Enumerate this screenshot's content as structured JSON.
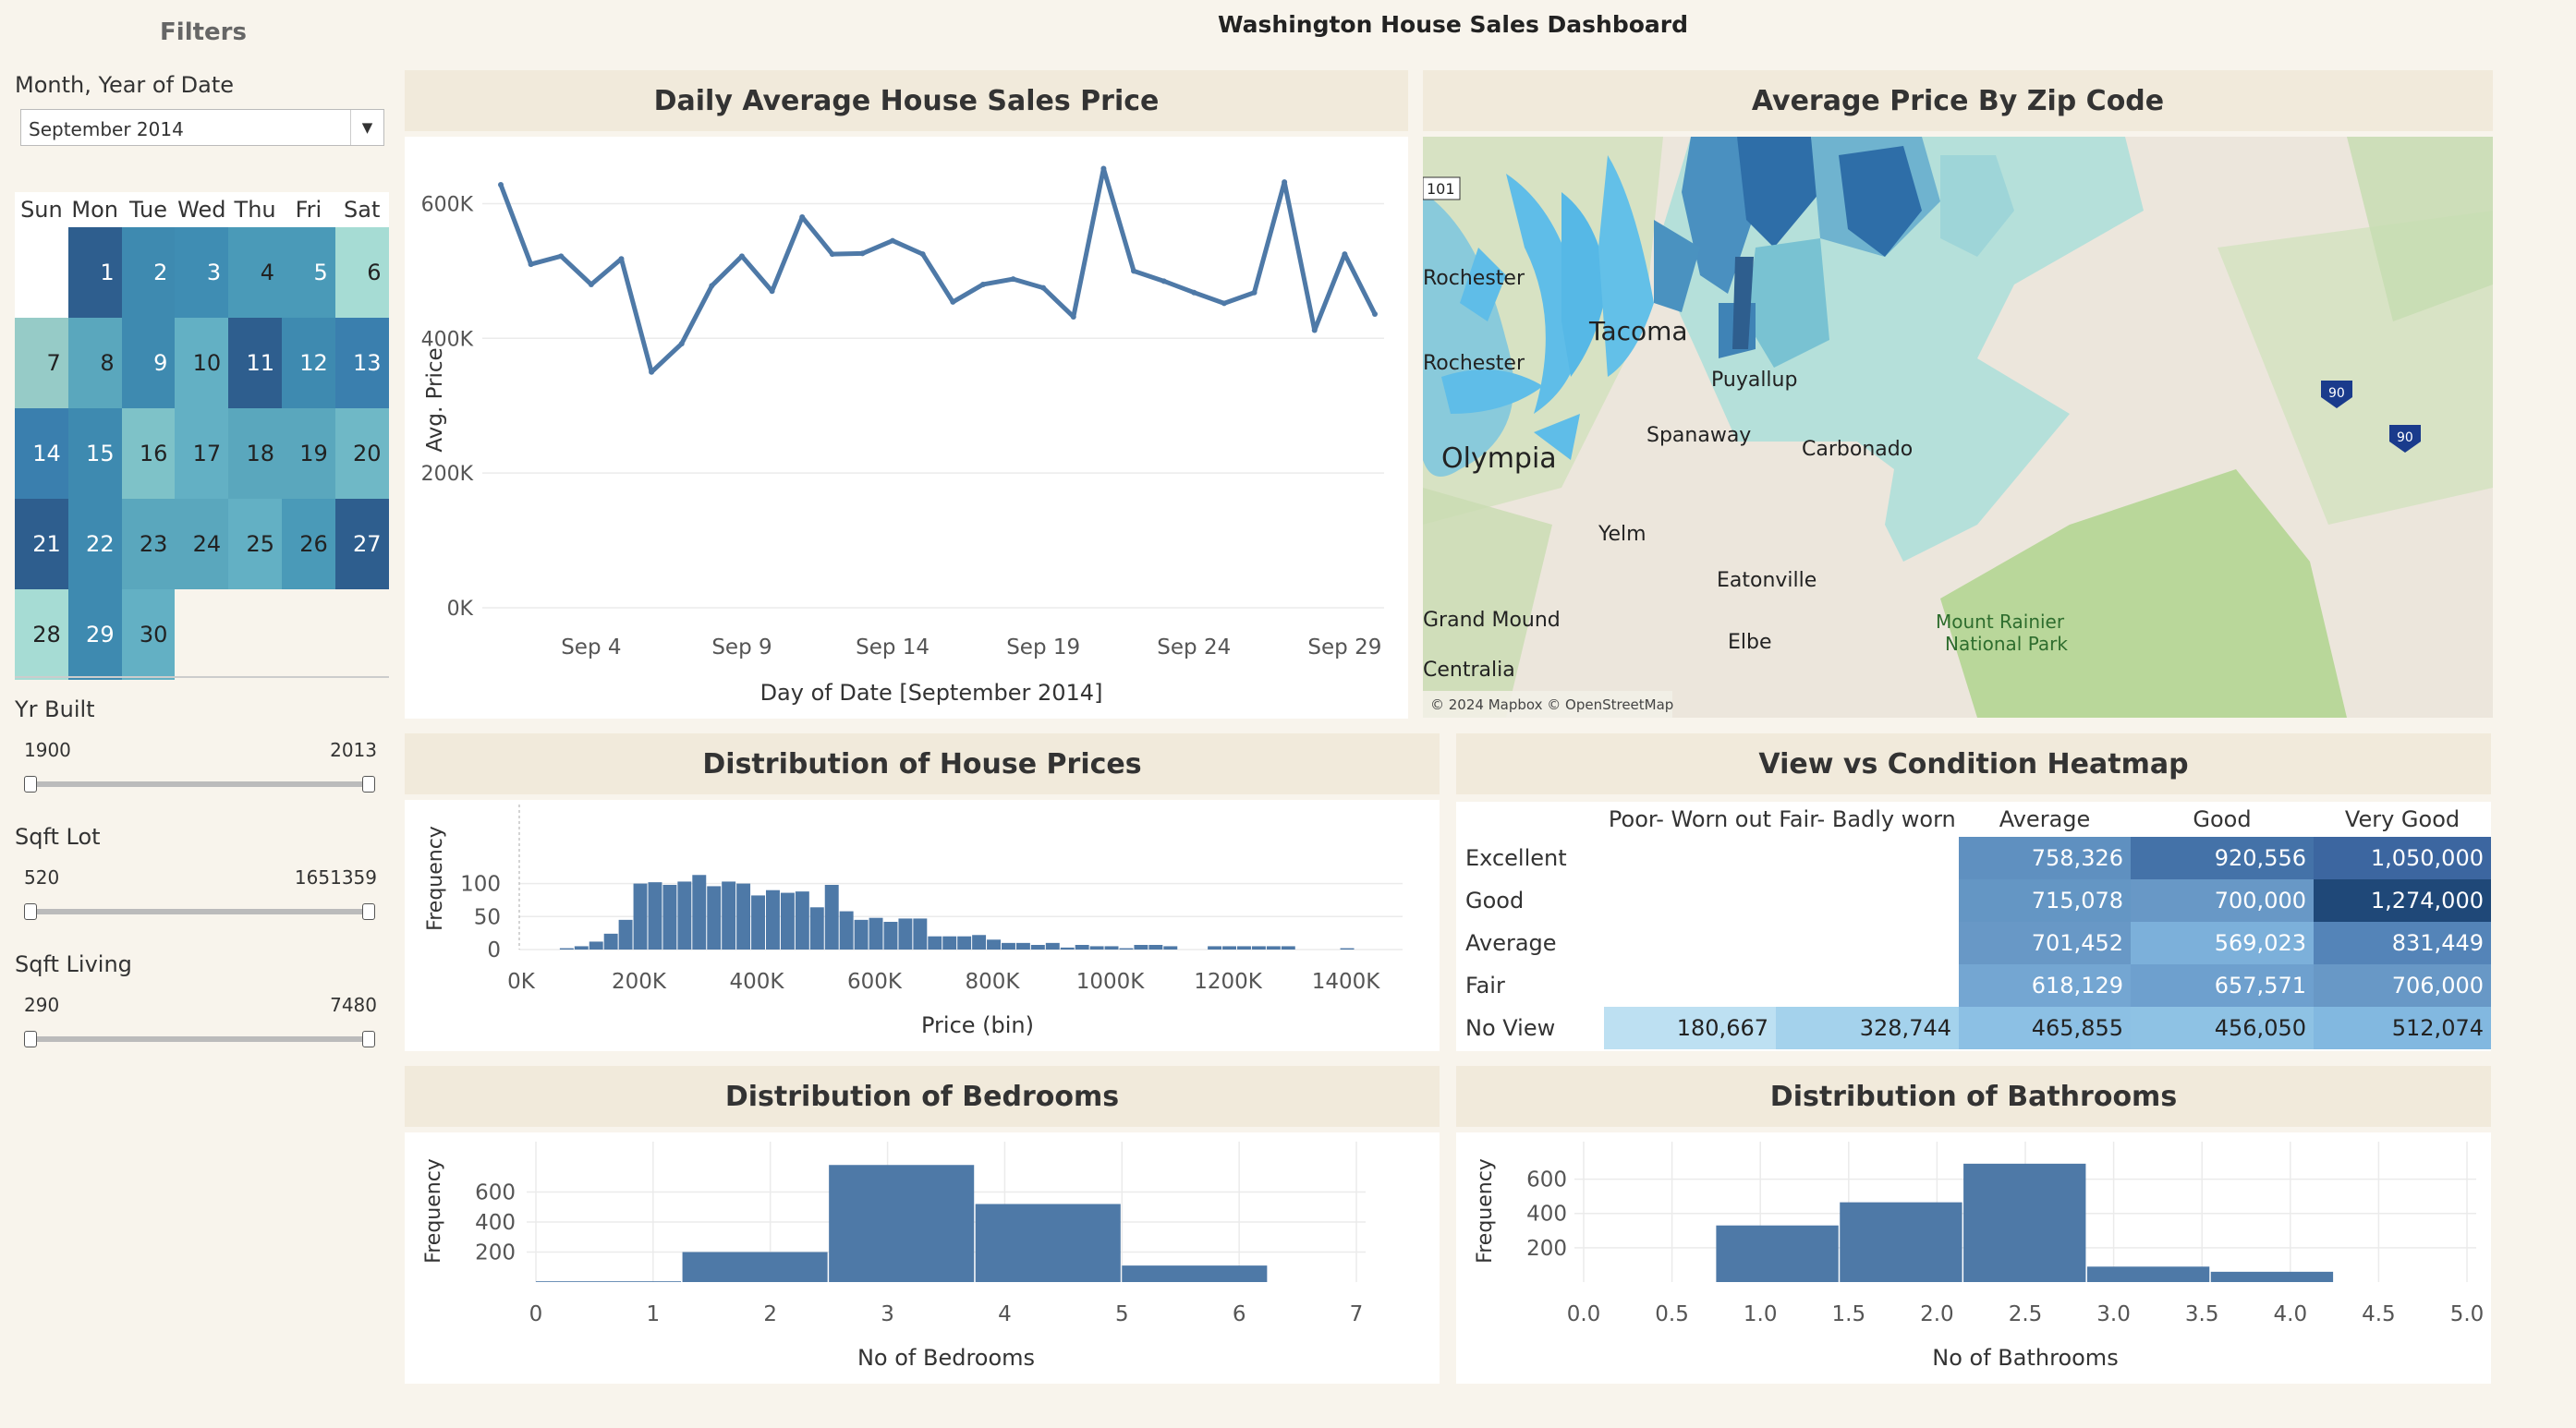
{
  "dashboard": {
    "title": "Washington House Sales Dashboard"
  },
  "filters": {
    "title": "Filters",
    "month_label": "Month, Year of Date",
    "month_value": "September 2014",
    "weekdays": [
      "Sun",
      "Mon",
      "Tue",
      "Wed",
      "Thu",
      "Fri",
      "Sat"
    ],
    "calendar_days": [
      {
        "day": "1",
        "color": "#2e5e8e",
        "text": "#ffffff"
      },
      {
        "day": "2",
        "color": "#3e8ab0",
        "text": "#ffffff"
      },
      {
        "day": "3",
        "color": "#3f8db3",
        "text": "#ffffff"
      },
      {
        "day": "4",
        "color": "#4a9ab8",
        "text": "#222222"
      },
      {
        "day": "5",
        "color": "#4a9ab8",
        "text": "#ffffff"
      },
      {
        "day": "6",
        "color": "#a6dcd4",
        "text": "#222222"
      },
      {
        "day": "7",
        "color": "#96cbc7",
        "text": "#222222"
      },
      {
        "day": "8",
        "color": "#5aa7bd",
        "text": "#222222"
      },
      {
        "day": "9",
        "color": "#3e8ab0",
        "text": "#ffffff"
      },
      {
        "day": "10",
        "color": "#63b0c4",
        "text": "#222222"
      },
      {
        "day": "11",
        "color": "#2e5e8e",
        "text": "#ffffff"
      },
      {
        "day": "12",
        "color": "#3e8ab0",
        "text": "#ffffff"
      },
      {
        "day": "13",
        "color": "#3a7fae",
        "text": "#ffffff"
      },
      {
        "day": "14",
        "color": "#3a7fae",
        "text": "#ffffff"
      },
      {
        "day": "15",
        "color": "#3e8ab0",
        "text": "#ffffff"
      },
      {
        "day": "16",
        "color": "#7ec2c8",
        "text": "#222222"
      },
      {
        "day": "17",
        "color": "#63b0c4",
        "text": "#222222"
      },
      {
        "day": "18",
        "color": "#5aa7bd",
        "text": "#222222"
      },
      {
        "day": "19",
        "color": "#5aa7bd",
        "text": "#222222"
      },
      {
        "day": "20",
        "color": "#6fb8c6",
        "text": "#222222"
      },
      {
        "day": "21",
        "color": "#2e5e8e",
        "text": "#ffffff"
      },
      {
        "day": "22",
        "color": "#3e8ab0",
        "text": "#ffffff"
      },
      {
        "day": "23",
        "color": "#5aa7bd",
        "text": "#222222"
      },
      {
        "day": "24",
        "color": "#5aa7bd",
        "text": "#222222"
      },
      {
        "day": "25",
        "color": "#63b0c4",
        "text": "#222222"
      },
      {
        "day": "26",
        "color": "#4a9ab8",
        "text": "#222222"
      },
      {
        "day": "27",
        "color": "#2e5e8e",
        "text": "#ffffff"
      },
      {
        "day": "28",
        "color": "#a6dcd4",
        "text": "#222222"
      },
      {
        "day": "29",
        "color": "#3e8ab0",
        "text": "#ffffff"
      },
      {
        "day": "30",
        "color": "#63b0c4",
        "text": "#222222"
      }
    ],
    "yr_built": {
      "label": "Yr Built",
      "min": "1900",
      "max": "2013"
    },
    "sqft_lot": {
      "label": "Sqft Lot",
      "min": "520",
      "max": "1651359"
    },
    "sqft_living": {
      "label": "Sqft Living",
      "min": "290",
      "max": "7480"
    }
  },
  "panels": {
    "daily": "Daily Average House Sales Price",
    "map": "Average Price By Zip Code",
    "prices": "Distribution of House Prices",
    "heatmap": "View vs Condition Heatmap",
    "bedrooms": "Distribution of Bedrooms",
    "bathrooms": "Distribution of Bathrooms"
  },
  "map": {
    "attribution": "© 2024 Mapbox © OpenStreetMap",
    "places": [
      "Tacoma",
      "Puyallup",
      "Spanaway",
      "Olympia",
      "Carbonado",
      "Yelm",
      "Eatonville",
      "Elbe",
      "Mount Rainier",
      "National Park",
      "Centralia",
      "Rochester",
      "Grand Mound",
      "101",
      "90",
      "90"
    ]
  },
  "heatmap": {
    "columns": [
      "Poor- Worn out",
      "Fair- Badly worn",
      "Average",
      "Good",
      "Very Good"
    ],
    "rows": [
      {
        "label": "Excellent",
        "cells": [
          {
            "v": "",
            "c": "#ffffff"
          },
          {
            "v": "",
            "c": "#ffffff"
          },
          {
            "v": "758,326",
            "c": "#5f90c0"
          },
          {
            "v": "920,556",
            "c": "#4472a8"
          },
          {
            "v": "1,050,000",
            "c": "#3c66a0"
          }
        ]
      },
      {
        "label": "Good",
        "cells": [
          {
            "v": "",
            "c": "#ffffff"
          },
          {
            "v": "",
            "c": "#ffffff"
          },
          {
            "v": "715,078",
            "c": "#6496c4"
          },
          {
            "v": "700,000",
            "c": "#6898c6"
          },
          {
            "v": "1,274,000",
            "c": "#1f4878"
          }
        ]
      },
      {
        "label": "Average",
        "cells": [
          {
            "v": "",
            "c": "#ffffff"
          },
          {
            "v": "",
            "c": "#ffffff"
          },
          {
            "v": "701,452",
            "c": "#6898c6"
          },
          {
            "v": "569,023",
            "c": "#7cb0da"
          },
          {
            "v": "831,449",
            "c": "#5484b8"
          }
        ]
      },
      {
        "label": "Fair",
        "cells": [
          {
            "v": "",
            "c": "#ffffff"
          },
          {
            "v": "",
            "c": "#ffffff"
          },
          {
            "v": "618,129",
            "c": "#74a6d2"
          },
          {
            "v": "657,571",
            "c": "#6ea0ce"
          },
          {
            "v": "706,000",
            "c": "#6898c6"
          }
        ]
      },
      {
        "label": "No View",
        "cells": [
          {
            "v": "180,667",
            "c": "#bde0f2"
          },
          {
            "v": "328,744",
            "c": "#a4d2ec"
          },
          {
            "v": "465,855",
            "c": "#8cc0e4"
          },
          {
            "v": "456,050",
            "c": "#8ec2e4"
          },
          {
            "v": "512,074",
            "c": "#82b8e0"
          }
        ]
      }
    ]
  },
  "chart_data": [
    {
      "type": "line",
      "title": "Daily Average House Sales Price",
      "xlabel": "Day of Date [September 2014]",
      "ylabel": "Avg. Price",
      "x": [
        1,
        2,
        3,
        4,
        5,
        6,
        7,
        8,
        9,
        10,
        11,
        12,
        13,
        14,
        15,
        16,
        17,
        18,
        19,
        20,
        21,
        22,
        23,
        24,
        25,
        26,
        27,
        28,
        29,
        30
      ],
      "values": [
        628000,
        510000,
        522000,
        480000,
        518000,
        350000,
        392000,
        478000,
        522000,
        470000,
        580000,
        525000,
        526000,
        545000,
        525000,
        454000,
        480000,
        488000,
        475000,
        432000,
        652000,
        500000,
        485000,
        468000,
        452000,
        468000,
        632000,
        412000,
        525000,
        436000
      ],
      "xticks": [
        "Sep 4",
        "Sep 9",
        "Sep 14",
        "Sep 19",
        "Sep 24",
        "Sep 29"
      ],
      "xtick_days": [
        4,
        9,
        14,
        19,
        24,
        29
      ],
      "yticks": [
        "0K",
        "200K",
        "400K",
        "600K"
      ],
      "ylim": [
        0,
        650000
      ],
      "color": "#4e79a7"
    },
    {
      "type": "bar",
      "title": "Distribution of House Prices",
      "xlabel": "Price (bin)",
      "ylabel": "Frequency",
      "bin_width": 25000,
      "bin_starts": [
        50000,
        75000,
        100000,
        125000,
        150000,
        175000,
        200000,
        225000,
        250000,
        275000,
        300000,
        325000,
        350000,
        375000,
        400000,
        425000,
        450000,
        475000,
        500000,
        525000,
        550000,
        575000,
        600000,
        625000,
        650000,
        675000,
        700000,
        725000,
        750000,
        775000,
        800000,
        825000,
        850000,
        875000,
        900000,
        925000,
        950000,
        975000,
        1000000,
        1025000,
        1050000,
        1075000,
        1150000,
        1175000,
        1200000,
        1225000,
        1250000,
        1275000,
        1375000
      ],
      "values": [
        2,
        5,
        12,
        24,
        45,
        100,
        102,
        98,
        103,
        113,
        96,
        103,
        100,
        82,
        90,
        86,
        88,
        64,
        98,
        58,
        45,
        48,
        42,
        47,
        47,
        20,
        20,
        20,
        22,
        15,
        10,
        10,
        7,
        10,
        3,
        7,
        5,
        5,
        2,
        7,
        7,
        5,
        5,
        5,
        5,
        5,
        5,
        5,
        2
      ],
      "xticks": [
        "0K",
        "200K",
        "400K",
        "600K",
        "800K",
        "1000K",
        "1200K",
        "1400K"
      ],
      "yticks": [
        "0",
        "50",
        "100"
      ],
      "ylim": [
        0,
        140
      ],
      "color": "#4e79a7"
    },
    {
      "type": "bar",
      "title": "Distribution of Bedrooms",
      "xlabel": "No of Bedrooms",
      "ylabel": "Frequency",
      "bin_edges": [
        0,
        1.25,
        2.5,
        3.75,
        5,
        6.25
      ],
      "values": [
        5,
        200,
        780,
        520,
        110
      ],
      "xticks": [
        "0",
        "1",
        "2",
        "3",
        "4",
        "5",
        "6",
        "7"
      ],
      "yticks": [
        "200",
        "400",
        "600"
      ],
      "ylim": [
        0,
        800
      ],
      "color": "#4e79a7"
    },
    {
      "type": "bar",
      "title": "Distribution of Bathrooms",
      "xlabel": "No of Bathrooms",
      "ylabel": "Frequency",
      "bin_edges": [
        0.75,
        1.45,
        2.15,
        2.85,
        3.55,
        4.25
      ],
      "values": [
        330,
        465,
        690,
        90,
        60
      ],
      "xticks": [
        "0.0",
        "0.5",
        "1.0",
        "1.5",
        "2.0",
        "2.5",
        "3.0",
        "3.5",
        "4.0",
        "4.5",
        "5.0"
      ],
      "yticks": [
        "200",
        "400",
        "600"
      ],
      "ylim": [
        0,
        700
      ],
      "color": "#4e79a7"
    }
  ]
}
